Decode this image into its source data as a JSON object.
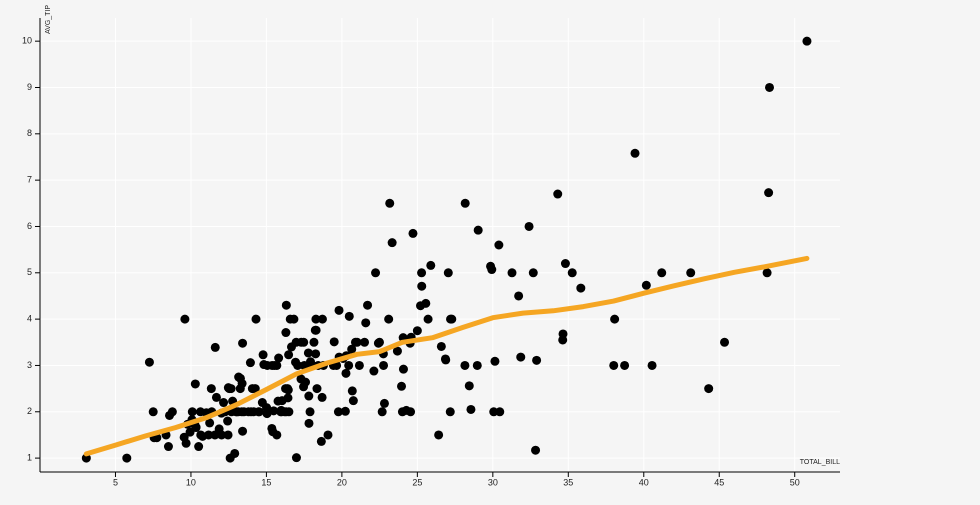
{
  "chart_data": {
    "type": "scatter",
    "title": "",
    "xlabel": "TOTAL_BILL",
    "ylabel": "AVG_TIP",
    "xlim": [
      0,
      53
    ],
    "ylim": [
      0.7,
      10.5
    ],
    "x_ticks": [
      5,
      10,
      15,
      20,
      25,
      30,
      35,
      40,
      45,
      50
    ],
    "y_ticks": [
      1,
      2,
      3,
      4,
      5,
      6,
      7,
      8,
      9,
      10
    ],
    "grid": true,
    "point_color": "#000000",
    "trend_color": "#f5a623",
    "points": [
      [
        3.07,
        1.0
      ],
      [
        5.75,
        1.0
      ],
      [
        7.25,
        3.07
      ],
      [
        7.5,
        2.0
      ],
      [
        7.56,
        1.44
      ],
      [
        7.74,
        1.44
      ],
      [
        8.35,
        1.5
      ],
      [
        8.51,
        1.25
      ],
      [
        8.58,
        1.92
      ],
      [
        8.77,
        2.0
      ],
      [
        9.55,
        1.45
      ],
      [
        9.6,
        4.0
      ],
      [
        9.68,
        1.32
      ],
      [
        9.78,
        1.73
      ],
      [
        9.94,
        1.56
      ],
      [
        10.07,
        1.83
      ],
      [
        10.09,
        2.0
      ],
      [
        10.27,
        1.71
      ],
      [
        10.29,
        2.6
      ],
      [
        10.33,
        1.67
      ],
      [
        10.34,
        1.66
      ],
      [
        10.51,
        1.25
      ],
      [
        10.63,
        2.0
      ],
      [
        10.65,
        1.5
      ],
      [
        10.77,
        1.47
      ],
      [
        11.02,
        1.98
      ],
      [
        11.17,
        1.5
      ],
      [
        11.24,
        1.76
      ],
      [
        11.35,
        2.5
      ],
      [
        11.38,
        2.0
      ],
      [
        11.59,
        1.5
      ],
      [
        11.61,
        3.39
      ],
      [
        11.69,
        2.31
      ],
      [
        11.87,
        1.63
      ],
      [
        12.02,
        1.97
      ],
      [
        12.03,
        1.5
      ],
      [
        12.16,
        2.2
      ],
      [
        12.26,
        2.0
      ],
      [
        12.43,
        1.8
      ],
      [
        12.46,
        1.5
      ],
      [
        12.48,
        2.52
      ],
      [
        12.54,
        2.5
      ],
      [
        12.6,
        1.0
      ],
      [
        12.66,
        2.5
      ],
      [
        12.69,
        2.0
      ],
      [
        12.74,
        2.01
      ],
      [
        12.76,
        2.23
      ],
      [
        12.9,
        1.1
      ],
      [
        13.0,
        2.0
      ],
      [
        13.03,
        2.0
      ],
      [
        13.13,
        2.0
      ],
      [
        13.16,
        2.75
      ],
      [
        13.27,
        2.5
      ],
      [
        13.28,
        2.72
      ],
      [
        13.37,
        2.0
      ],
      [
        13.39,
        2.61
      ],
      [
        13.42,
        3.48
      ],
      [
        13.42,
        1.58
      ],
      [
        13.51,
        2.0
      ],
      [
        13.81,
        2.0
      ],
      [
        13.94,
        3.06
      ],
      [
        13.98,
        2.0
      ],
      [
        14.07,
        2.5
      ],
      [
        14.15,
        2.0
      ],
      [
        14.26,
        2.5
      ],
      [
        14.31,
        4.0
      ],
      [
        14.48,
        2.0
      ],
      [
        14.52,
        2.0
      ],
      [
        14.73,
        2.2
      ],
      [
        14.78,
        3.23
      ],
      [
        14.83,
        3.02
      ],
      [
        15.01,
        2.09
      ],
      [
        15.04,
        1.96
      ],
      [
        15.06,
        3.0
      ],
      [
        15.36,
        1.64
      ],
      [
        15.38,
        3.0
      ],
      [
        15.42,
        1.57
      ],
      [
        15.48,
        2.02
      ],
      [
        15.53,
        3.0
      ],
      [
        15.69,
        1.5
      ],
      [
        15.69,
        3.0
      ],
      [
        15.77,
        2.23
      ],
      [
        15.81,
        3.16
      ],
      [
        15.95,
        2.0
      ],
      [
        15.98,
        2.03
      ],
      [
        16.0,
        2.0
      ],
      [
        16.04,
        2.24
      ],
      [
        16.21,
        2.0
      ],
      [
        16.27,
        2.5
      ],
      [
        16.29,
        3.71
      ],
      [
        16.31,
        2.0
      ],
      [
        16.32,
        4.3
      ],
      [
        16.4,
        2.5
      ],
      [
        16.43,
        2.3
      ],
      [
        16.45,
        2.47
      ],
      [
        16.47,
        3.23
      ],
      [
        16.49,
        2.0
      ],
      [
        16.58,
        4.0
      ],
      [
        16.66,
        3.4
      ],
      [
        16.82,
        4.0
      ],
      [
        16.93,
        3.07
      ],
      [
        16.97,
        3.5
      ],
      [
        16.99,
        1.01
      ],
      [
        17.07,
        3.0
      ],
      [
        17.29,
        2.71
      ],
      [
        17.31,
        3.5
      ],
      [
        17.46,
        2.54
      ],
      [
        17.47,
        3.5
      ],
      [
        17.51,
        3.0
      ],
      [
        17.59,
        2.64
      ],
      [
        17.78,
        3.27
      ],
      [
        17.81,
        2.34
      ],
      [
        17.82,
        1.75
      ],
      [
        17.89,
        2.0
      ],
      [
        17.92,
        3.08
      ],
      [
        18.04,
        3.0
      ],
      [
        18.15,
        3.5
      ],
      [
        18.24,
        3.76
      ],
      [
        18.26,
        3.25
      ],
      [
        18.28,
        4.0
      ],
      [
        18.29,
        3.76
      ],
      [
        18.35,
        2.5
      ],
      [
        18.43,
        3.0
      ],
      [
        18.64,
        1.36
      ],
      [
        18.69,
        2.31
      ],
      [
        18.71,
        4.0
      ],
      [
        18.78,
        3.0
      ],
      [
        19.08,
        1.5
      ],
      [
        19.44,
        3.0
      ],
      [
        19.49,
        3.51
      ],
      [
        19.65,
        3.0
      ],
      [
        19.77,
        2.0
      ],
      [
        19.81,
        4.19
      ],
      [
        19.82,
        3.18
      ],
      [
        20.08,
        3.15
      ],
      [
        20.23,
        2.01
      ],
      [
        20.27,
        2.83
      ],
      [
        20.29,
        3.21
      ],
      [
        20.45,
        3.0
      ],
      [
        20.49,
        4.06
      ],
      [
        20.65,
        3.35
      ],
      [
        20.69,
        2.45
      ],
      [
        20.76,
        2.24
      ],
      [
        20.9,
        3.5
      ],
      [
        21.01,
        3.5
      ],
      [
        21.16,
        3.0
      ],
      [
        21.5,
        3.5
      ],
      [
        21.58,
        3.92
      ],
      [
        21.7,
        4.3
      ],
      [
        22.12,
        2.88
      ],
      [
        22.23,
        5.0
      ],
      [
        22.42,
        3.48
      ],
      [
        22.49,
        3.5
      ],
      [
        22.67,
        2.0
      ],
      [
        22.75,
        3.25
      ],
      [
        22.76,
        3.0
      ],
      [
        22.82,
        2.18
      ],
      [
        23.1,
        4.0
      ],
      [
        23.17,
        6.5
      ],
      [
        23.33,
        5.65
      ],
      [
        23.68,
        3.31
      ],
      [
        23.95,
        2.55
      ],
      [
        24.01,
        2.0
      ],
      [
        24.06,
        3.6
      ],
      [
        24.08,
        2.92
      ],
      [
        24.27,
        2.03
      ],
      [
        24.52,
        3.48
      ],
      [
        24.55,
        2.0
      ],
      [
        24.59,
        3.61
      ],
      [
        24.71,
        5.85
      ],
      [
        25.0,
        3.75
      ],
      [
        25.21,
        4.29
      ],
      [
        25.28,
        5.0
      ],
      [
        25.29,
        4.71
      ],
      [
        25.56,
        4.34
      ],
      [
        25.71,
        4.0
      ],
      [
        25.89,
        5.16
      ],
      [
        26.41,
        1.5
      ],
      [
        26.59,
        3.41
      ],
      [
        26.86,
        3.14
      ],
      [
        26.88,
        3.12
      ],
      [
        27.05,
        5.0
      ],
      [
        27.18,
        2.0
      ],
      [
        27.2,
        4.0
      ],
      [
        27.28,
        4.0
      ],
      [
        28.15,
        3.0
      ],
      [
        28.17,
        6.5
      ],
      [
        28.44,
        2.56
      ],
      [
        28.55,
        2.05
      ],
      [
        28.97,
        3.0
      ],
      [
        29.03,
        5.92
      ],
      [
        29.85,
        5.14
      ],
      [
        29.93,
        5.07
      ],
      [
        30.06,
        2.0
      ],
      [
        30.14,
        3.09
      ],
      [
        30.4,
        5.6
      ],
      [
        30.46,
        2.0
      ],
      [
        31.27,
        5.0
      ],
      [
        31.71,
        4.5
      ],
      [
        31.85,
        3.18
      ],
      [
        32.4,
        6.0
      ],
      [
        32.68,
        5.0
      ],
      [
        32.83,
        1.17
      ],
      [
        32.9,
        3.11
      ],
      [
        34.3,
        6.7
      ],
      [
        34.63,
        3.55
      ],
      [
        34.65,
        3.68
      ],
      [
        34.81,
        5.2
      ],
      [
        35.26,
        5.0
      ],
      [
        35.83,
        4.67
      ],
      [
        38.01,
        3.0
      ],
      [
        38.07,
        4.0
      ],
      [
        38.73,
        3.0
      ],
      [
        39.42,
        7.58
      ],
      [
        40.17,
        4.73
      ],
      [
        40.55,
        3.0
      ],
      [
        41.19,
        5.0
      ],
      [
        43.11,
        5.0
      ],
      [
        44.3,
        2.5
      ],
      [
        45.35,
        3.5
      ],
      [
        48.17,
        5.0
      ],
      [
        48.27,
        6.73
      ],
      [
        48.33,
        9.0
      ],
      [
        50.81,
        10.0
      ]
    ],
    "trend": [
      [
        3.07,
        1.09
      ],
      [
        5.0,
        1.28
      ],
      [
        7.0,
        1.48
      ],
      [
        9.0,
        1.66
      ],
      [
        11.0,
        1.87
      ],
      [
        13.0,
        2.15
      ],
      [
        15.0,
        2.48
      ],
      [
        17.0,
        2.82
      ],
      [
        19.0,
        3.05
      ],
      [
        21.0,
        3.24
      ],
      [
        22.5,
        3.3
      ],
      [
        24.0,
        3.5
      ],
      [
        26.0,
        3.6
      ],
      [
        28.0,
        3.82
      ],
      [
        30.0,
        4.03
      ],
      [
        32.0,
        4.13
      ],
      [
        34.0,
        4.18
      ],
      [
        36.0,
        4.27
      ],
      [
        38.0,
        4.39
      ],
      [
        40.0,
        4.56
      ],
      [
        42.0,
        4.72
      ],
      [
        44.0,
        4.87
      ],
      [
        46.0,
        5.01
      ],
      [
        48.0,
        5.13
      ],
      [
        50.81,
        5.31
      ]
    ]
  }
}
